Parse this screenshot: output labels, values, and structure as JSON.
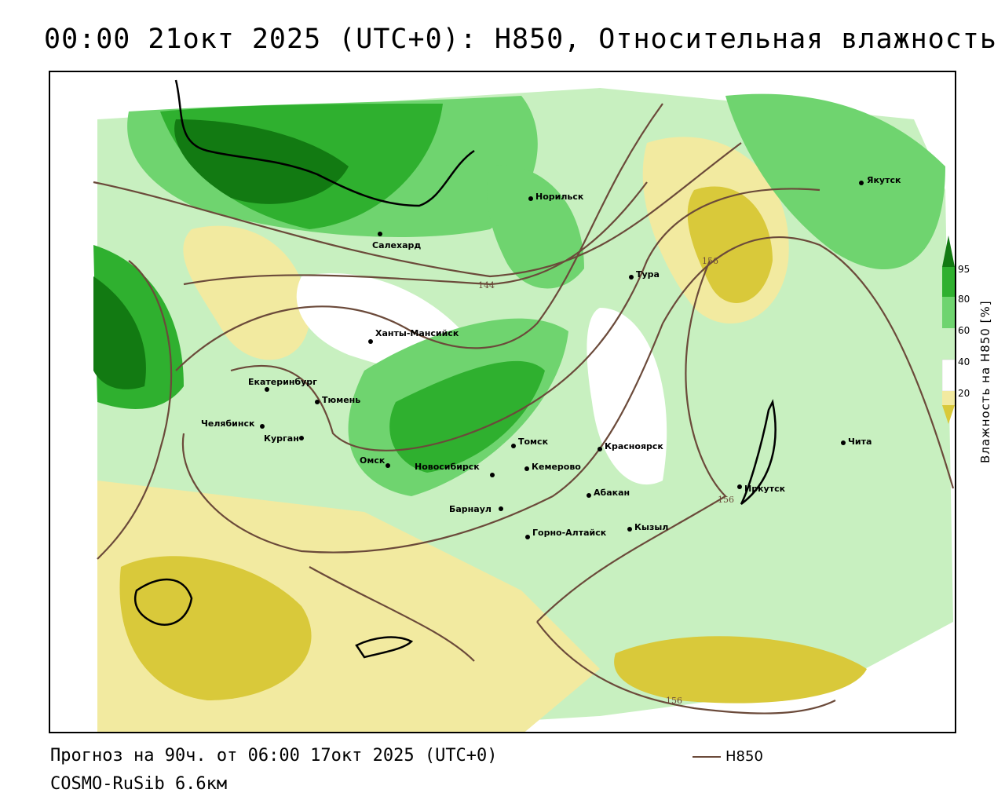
{
  "title": "00:00 21окт 2025 (UTC+0): H850, Относительная влажность",
  "footer": {
    "forecast": "Прогноз на 90ч. от 06:00 17окт 2025 (UTC+0)",
    "model": "COSMO-RuSib 6.6км"
  },
  "legend": {
    "line_label": "H850",
    "line_color": "#6b4a3a",
    "colorbar_title": "Влажность на H850 [%]",
    "ticks": [
      "95",
      "80",
      "60",
      "40",
      "20"
    ],
    "colors": {
      "very_dry": "#d9c93a",
      "dry": "#f2eaa0",
      "neutral": "#ffffff",
      "moist": "#c8f0c0",
      "wet": "#6fd46f",
      "very_wet": "#2fb02f",
      "saturated": "#127a12"
    }
  },
  "contour_labels": [
    "144",
    "156",
    "156",
    "156"
  ],
  "cities": [
    "Якутск",
    "Норильск",
    "Салехард",
    "Тура",
    "Ханты-Мансийск",
    "Екатеринбург",
    "Тюмень",
    "Челябинск",
    "Курган",
    "Омск",
    "Новосибирск",
    "Томск",
    "Кемерово",
    "Красноярск",
    "Барнаул",
    "Абакан",
    "Иркутск",
    "Чита",
    "Кызыл",
    "Горно-Алтайск"
  ]
}
